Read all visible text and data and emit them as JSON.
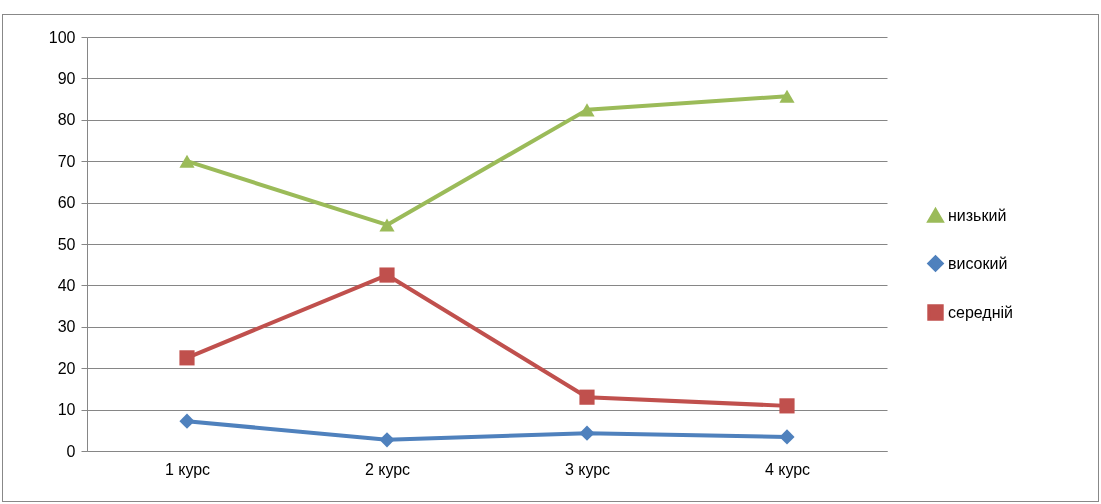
{
  "chart_data": {
    "type": "line",
    "categories": [
      "1 курс",
      "2 курс",
      "3 курс",
      "4 курс"
    ],
    "series": [
      {
        "name": "низький",
        "color": "#9bbb59",
        "marker": "triangle",
        "values": [
          70.0,
          54.6,
          82.4,
          85.7
        ]
      },
      {
        "name": "високий",
        "color": "#4f81bd",
        "marker": "diamond",
        "values": [
          7.2,
          2.7,
          4.3,
          3.4
        ]
      },
      {
        "name": "середній",
        "color": "#c0504d",
        "marker": "square",
        "values": [
          22.5,
          42.5,
          13.0,
          10.9
        ]
      }
    ],
    "ylim": [
      0,
      100
    ],
    "yticks": [
      0,
      10,
      20,
      30,
      40,
      50,
      60,
      70,
      80,
      90,
      100
    ],
    "grid": "y",
    "legend": "right"
  }
}
